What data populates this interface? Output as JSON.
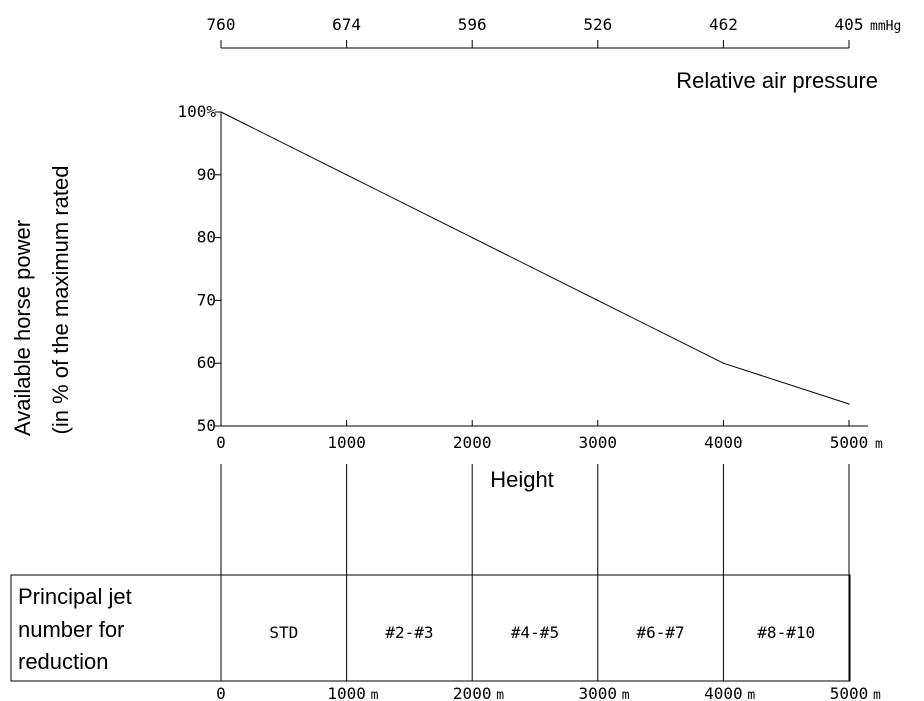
{
  "chart_data": {
    "type": "line",
    "x": [
      0,
      1000,
      2000,
      3000,
      4000,
      5000
    ],
    "y": [
      100,
      90,
      80,
      70,
      60,
      53.5
    ],
    "x_ticks": [
      "0",
      "1000",
      "2000",
      "3000",
      "4000",
      "5000"
    ],
    "x_unit": "m",
    "xlabel": "Height",
    "xlim": [
      0,
      5000
    ],
    "y_ticks": [
      "100%",
      "90",
      "80",
      "70",
      "60",
      "50"
    ],
    "ylim": [
      50,
      100
    ],
    "ylabel_line1": "Available horse power",
    "ylabel_line2": "(in  %  of  the  maximum  rated",
    "pressure_ticks": [
      "760",
      "674",
      "596",
      "526",
      "462",
      "405"
    ],
    "pressure_unit": "mmHg",
    "pressure_label": "Relative air pressure",
    "grid": false
  },
  "jet_table": {
    "label_lines": [
      "Principal  jet",
      "number   for",
      "reduction"
    ],
    "cells": [
      "STD",
      "#2-#3",
      "#4-#5",
      "#6-#7",
      "#8-#10"
    ],
    "bottom_ticks": [
      "0",
      "1000",
      "2000",
      "3000",
      "4000",
      "5000"
    ],
    "bottom_unit": "m"
  }
}
